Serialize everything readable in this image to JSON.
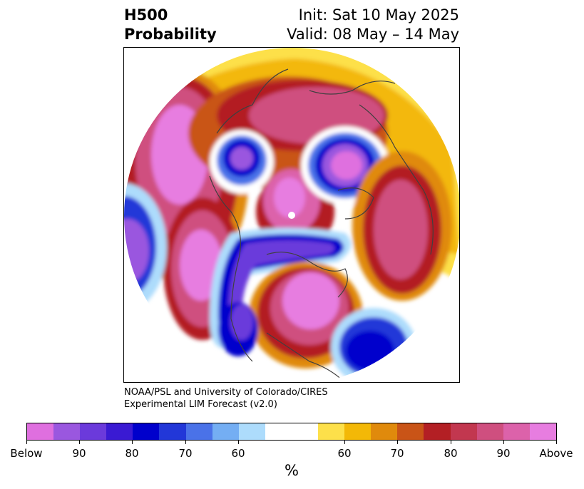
{
  "header": {
    "title_line1": "H500",
    "title_line2": "Probability",
    "init": "Init: Sat 10 May 2025",
    "valid": "Valid: 08 May – 14 May"
  },
  "credit": {
    "line1": "NOAA/PSL and University of Colorado/CIRES",
    "line2": "Experimental LIM Forecast (v2.0)"
  },
  "colorbar": {
    "unit_label": "%",
    "colors": [
      "#df6fdf",
      "#9a57df",
      "#6b3adb",
      "#3a1ad3",
      "#0000cc",
      "#2237d8",
      "#4a72e8",
      "#74aef3",
      "#addcfc",
      "#ffffff",
      "#ffffff",
      "#fde04a",
      "#f3b807",
      "#e08a0c",
      "#c95417",
      "#b31f24",
      "#c2374f",
      "#cf4f7f",
      "#dc62aa",
      "#e77de0"
    ],
    "tick_labels": [
      "Below",
      "90",
      "80",
      "70",
      "60",
      "60",
      "70",
      "80",
      "90",
      "Above"
    ]
  },
  "legend_colors": {
    "below_90": "#df6fdf",
    "below_60": "#4a72e8",
    "above_60": "#f3b807",
    "above_80": "#c2374f",
    "above_90": "#dc62aa"
  }
}
